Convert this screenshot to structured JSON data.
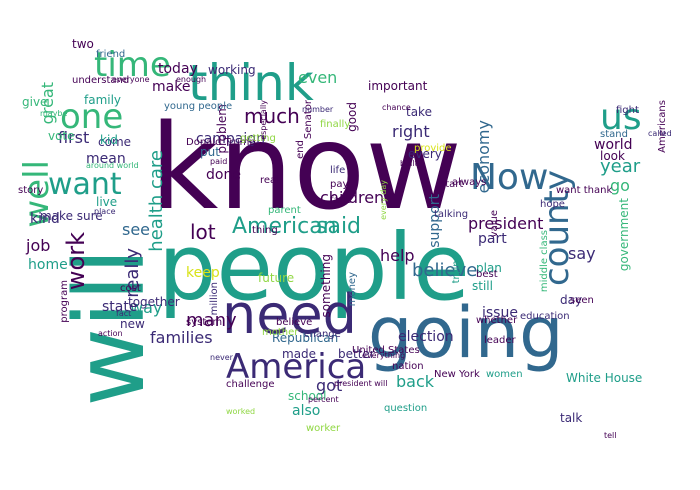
{
  "colors": {
    "purple": "#440154",
    "indigo": "#3b2a75",
    "blue": "#31688e",
    "teal": "#1f9e89",
    "green": "#35b779",
    "lime": "#90d743",
    "yellow": "#d8e219"
  },
  "words": [
    {
      "text": "know"
    },
    {
      "text": "people"
    },
    {
      "text": "will"
    },
    {
      "text": "going"
    },
    {
      "text": "need"
    },
    {
      "text": "think"
    },
    {
      "text": "America"
    },
    {
      "text": "Now"
    },
    {
      "text": "us"
    },
    {
      "text": "county"
    },
    {
      "text": "time"
    },
    {
      "text": "one"
    },
    {
      "text": "want"
    },
    {
      "text": "work"
    },
    {
      "text": "well"
    },
    {
      "text": "American"
    },
    {
      "text": "said"
    },
    {
      "text": "believe"
    },
    {
      "text": "health care"
    },
    {
      "text": "really"
    },
    {
      "text": "president"
    },
    {
      "text": "children"
    },
    {
      "text": "families"
    },
    {
      "text": "lot"
    },
    {
      "text": "much"
    },
    {
      "text": "right"
    },
    {
      "text": "today"
    },
    {
      "text": "great"
    },
    {
      "text": "first"
    },
    {
      "text": "even"
    },
    {
      "text": "government"
    },
    {
      "text": "election"
    },
    {
      "text": "year"
    },
    {
      "text": "economy"
    },
    {
      "text": "support"
    },
    {
      "text": "back"
    },
    {
      "text": "many"
    },
    {
      "text": "way"
    },
    {
      "text": "job"
    },
    {
      "text": "kind"
    },
    {
      "text": "help"
    },
    {
      "text": "go"
    },
    {
      "text": "say"
    },
    {
      "text": "state"
    },
    {
      "text": "also"
    },
    {
      "text": "make"
    },
    {
      "text": "got"
    },
    {
      "text": "something"
    },
    {
      "text": "campaign"
    },
    {
      "text": "home"
    },
    {
      "text": "family"
    },
    {
      "text": "mean"
    },
    {
      "text": "come"
    },
    {
      "text": "see"
    },
    {
      "text": "new"
    },
    {
      "text": "future"
    },
    {
      "text": "part"
    },
    {
      "text": "plan"
    },
    {
      "text": "talk"
    },
    {
      "text": "world"
    },
    {
      "text": "look"
    },
    {
      "text": "issue"
    },
    {
      "text": "make sure"
    },
    {
      "text": "Americans"
    },
    {
      "text": "Republican"
    },
    {
      "text": "school"
    },
    {
      "text": "done"
    },
    {
      "text": "put"
    },
    {
      "text": "still"
    },
    {
      "text": "day"
    },
    {
      "text": "vote"
    },
    {
      "text": "give"
    },
    {
      "text": "every"
    },
    {
      "text": "keep"
    },
    {
      "text": "kid"
    },
    {
      "text": "live"
    },
    {
      "text": "Senator"
    },
    {
      "text": "middle class"
    },
    {
      "text": "White House"
    },
    {
      "text": "good"
    },
    {
      "text": "important"
    },
    {
      "text": "take"
    },
    {
      "text": "start"
    },
    {
      "text": "trying"
    },
    {
      "text": "problem"
    },
    {
      "text": "working"
    },
    {
      "text": "made"
    },
    {
      "text": "better"
    },
    {
      "text": "nation"
    },
    {
      "text": "life"
    },
    {
      "text": "pay"
    },
    {
      "text": "face"
    },
    {
      "text": "end"
    },
    {
      "text": "together"
    },
    {
      "text": "cost"
    },
    {
      "text": "question"
    },
    {
      "text": "women"
    },
    {
      "text": "want thank"
    },
    {
      "text": "two"
    },
    {
      "text": "friend"
    },
    {
      "text": "understand"
    },
    {
      "text": "young people"
    },
    {
      "text": "system"
    },
    {
      "text": "mother"
    },
    {
      "text": "leader"
    },
    {
      "text": "hope"
    },
    {
      "text": "money"
    },
    {
      "text": "million"
    },
    {
      "text": "United States"
    },
    {
      "text": "New York"
    },
    {
      "text": "whether"
    },
    {
      "text": "worker"
    },
    {
      "text": "program"
    },
    {
      "text": "Donald Trump"
    },
    {
      "text": "always"
    },
    {
      "text": "education"
    },
    {
      "text": "thing"
    },
    {
      "text": "getting"
    },
    {
      "text": "believe"
    },
    {
      "text": "change"
    },
    {
      "text": "seen"
    },
    {
      "text": "finally"
    },
    {
      "text": "story"
    },
    {
      "text": "fight"
    },
    {
      "text": "talking"
    },
    {
      "text": "best"
    },
    {
      "text": "parent"
    },
    {
      "text": "real"
    },
    {
      "text": "stand"
    },
    {
      "text": "value"
    },
    {
      "text": "called"
    },
    {
      "text": "provide"
    },
    {
      "text": "everything"
    },
    {
      "text": "challenge"
    },
    {
      "text": "percent"
    },
    {
      "text": "president will"
    },
    {
      "text": "never"
    },
    {
      "text": "maybe"
    },
    {
      "text": "action"
    },
    {
      "text": "around world"
    },
    {
      "text": "every day"
    },
    {
      "text": "fact"
    },
    {
      "text": "place"
    },
    {
      "text": "worked"
    },
    {
      "text": "tell"
    },
    {
      "text": "built"
    },
    {
      "text": "everyone"
    },
    {
      "text": "chance"
    },
    {
      "text": "enough"
    },
    {
      "text": "paid"
    },
    {
      "text": "especially"
    },
    {
      "text": "number"
    },
    {
      "text": "word"
    },
    {
      "text": "saying"
    },
    {
      "text": "came"
    },
    {
      "text": "must"
    }
  ]
}
